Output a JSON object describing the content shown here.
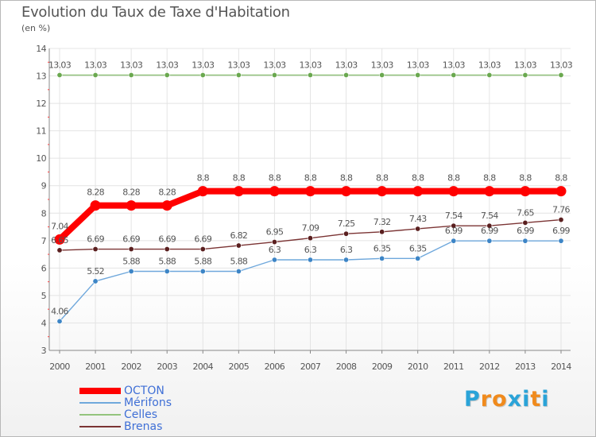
{
  "title": "Evolution du Taux de Taxe d'Habitation",
  "subtitle": "(en %)",
  "logo": {
    "text": "Proxiti",
    "letter_colors": [
      "#2aa3d8",
      "#f08a1c",
      "#f08a1c",
      "#2aa3d8",
      "#2aa3d8",
      "#f08a1c",
      "#2aa3d8"
    ]
  },
  "chart_data": {
    "type": "line",
    "title": "Evolution du Taux de Taxe d'Habitation",
    "ylabel": "(en %)",
    "xlabel": "",
    "x": [
      "2000",
      "2001",
      "2002",
      "2003",
      "2004",
      "2005",
      "2006",
      "2007",
      "2008",
      "2009",
      "2010",
      "2011",
      "2012",
      "2013",
      "2014"
    ],
    "ylim": [
      3,
      14
    ],
    "yticks": [
      3,
      4,
      5,
      6,
      7,
      8,
      9,
      10,
      11,
      12,
      13,
      14
    ],
    "grid": true,
    "legend_position": "bottom-left",
    "series": [
      {
        "name": "OCTON",
        "color": "#ff0000",
        "thick": true,
        "values": [
          7.04,
          8.28,
          8.28,
          8.28,
          8.8,
          8.8,
          8.8,
          8.8,
          8.8,
          8.8,
          8.8,
          8.8,
          8.8,
          8.8,
          8.8
        ],
        "labels": [
          "7.04",
          "8.28",
          "8.28",
          "8.28",
          "8.8",
          "8.8",
          "8.8",
          "8.8",
          "8.8",
          "8.8",
          "8.8",
          "8.8",
          "8.8",
          "8.8",
          "8.8"
        ]
      },
      {
        "name": "Mérifons",
        "color": "#6fa8dc",
        "marker": "#3d85c6",
        "thick": false,
        "values": [
          4.06,
          5.52,
          5.88,
          5.88,
          5.88,
          5.88,
          6.3,
          6.3,
          6.3,
          6.35,
          6.35,
          6.99,
          6.99,
          6.99,
          6.99
        ],
        "labels": [
          "4.06",
          "5.52",
          "5.88",
          "5.88",
          "5.88",
          "5.88",
          "6.3",
          "6.3",
          "6.3",
          "6.35",
          "6.35",
          "6.99",
          "6.99",
          "6.99",
          "6.99"
        ]
      },
      {
        "name": "Celles",
        "color": "#93c47d",
        "marker": "#6aa84f",
        "thick": false,
        "values": [
          13.03,
          13.03,
          13.03,
          13.03,
          13.03,
          13.03,
          13.03,
          13.03,
          13.03,
          13.03,
          13.03,
          13.03,
          13.03,
          13.03,
          13.03
        ],
        "labels": [
          "13.03",
          "13.03",
          "13.03",
          "13.03",
          "13.03",
          "13.03",
          "13.03",
          "13.03",
          "13.03",
          "13.03",
          "13.03",
          "13.03",
          "13.03",
          "13.03",
          "13.03"
        ]
      },
      {
        "name": "Brenas",
        "color": "#7b3434",
        "marker": "#5a1f1f",
        "thick": false,
        "values": [
          6.65,
          6.69,
          6.69,
          6.69,
          6.69,
          6.82,
          6.95,
          7.09,
          7.25,
          7.32,
          7.43,
          7.54,
          7.54,
          7.65,
          7.76
        ],
        "labels": [
          "6.65",
          "6.69",
          "6.69",
          "6.69",
          "6.69",
          "6.82",
          "6.95",
          "7.09",
          "7.25",
          "7.32",
          "7.43",
          "7.54",
          "7.54",
          "7.65",
          "7.76"
        ]
      }
    ]
  }
}
